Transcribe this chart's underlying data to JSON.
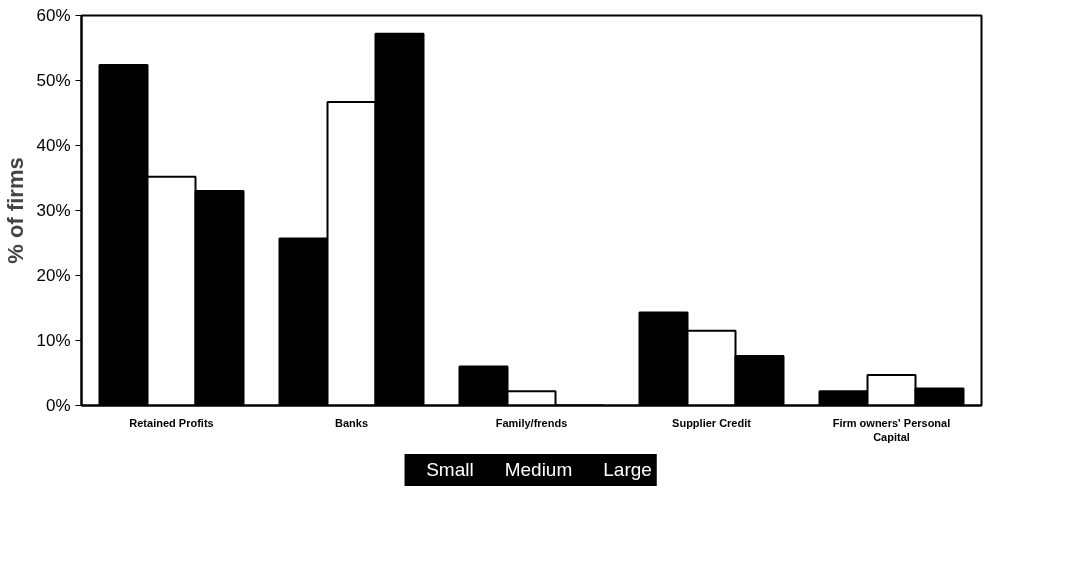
{
  "chart_data": {
    "type": "bar",
    "ylabel": "% of firms",
    "categories": [
      "Retained Profits",
      "Banks",
      "Family/frends",
      "Supplier Credit",
      "Firm owners' Personal Capital"
    ],
    "series": [
      {
        "name": "Small",
        "color": "#000000",
        "values": [
          52.4,
          25.7,
          6.0,
          14.3,
          2.2
        ]
      },
      {
        "name": "Medium",
        "color": "#ffffff",
        "values": [
          35.2,
          46.7,
          2.2,
          11.5,
          4.7
        ]
      },
      {
        "name": "Large",
        "color": "#000000",
        "values": [
          33.0,
          57.2,
          0,
          7.6,
          2.6
        ]
      }
    ],
    "ylim": [
      0,
      60
    ],
    "yticks": [
      {
        "value": 0,
        "label": "0%"
      },
      {
        "value": 10,
        "label": "10%"
      },
      {
        "value": 20,
        "label": "20%"
      },
      {
        "value": 30,
        "label": "30%"
      },
      {
        "value": 40,
        "label": "40%"
      },
      {
        "value": 50,
        "label": "50%"
      },
      {
        "value": 60,
        "label": "60%"
      }
    ],
    "legend": "bottom",
    "grid": false
  }
}
